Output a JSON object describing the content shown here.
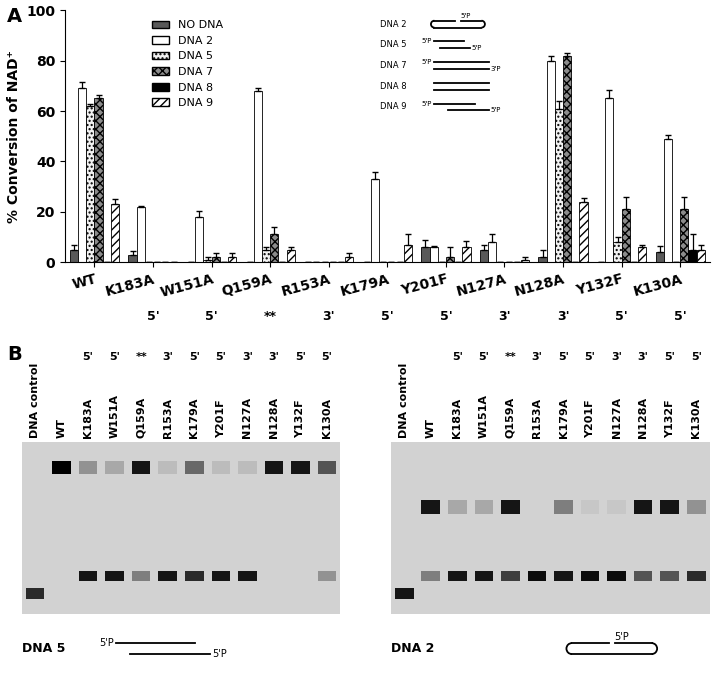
{
  "panel_labels": [
    "A",
    "B"
  ],
  "chart_data": {
    "type": "bar",
    "ylabel": "% Conversion of NAD⁺",
    "categories": [
      "WT",
      "K183A",
      "W151A",
      "Q159A",
      "R153A",
      "K179A",
      "Y201F",
      "N127A",
      "N128A",
      "Y132F",
      "K130A"
    ],
    "category_notes": [
      null,
      "5'",
      "5'",
      "**",
      "3'",
      "5'",
      "5'",
      "3'",
      "3'",
      "5'",
      "5'"
    ],
    "ylim": [
      0,
      100
    ],
    "yticks": [
      0,
      20,
      40,
      60,
      80,
      100
    ],
    "legend": "upper left",
    "series": [
      {
        "name": "NO DNA",
        "color": "#595959",
        "values": [
          5,
          3,
          0,
          0,
          0,
          0,
          6,
          5,
          2,
          0,
          4
        ],
        "errors": [
          2,
          1.5,
          0,
          0,
          0,
          0,
          3,
          2,
          3,
          0,
          2.5
        ]
      },
      {
        "name": "DNA 2",
        "color": "#ffffff",
        "values": [
          69,
          22,
          18,
          68,
          0,
          33,
          6,
          8,
          80,
          65,
          49
        ],
        "errors": [
          2.5,
          0.5,
          2.5,
          1,
          0,
          3,
          0.5,
          3,
          2,
          3.5,
          1.5
        ]
      },
      {
        "name": "DNA 5",
        "color": "#f2f2f2",
        "values": [
          62,
          0,
          1,
          5,
          0,
          0,
          0,
          0,
          61,
          8,
          0
        ],
        "errors": [
          1,
          0,
          1,
          1,
          0,
          0,
          0,
          0,
          3,
          2,
          0
        ]
      },
      {
        "name": "DNA 7",
        "color": "#8c8c8c",
        "values": [
          65,
          0,
          2,
          11,
          0,
          0,
          2,
          0,
          82,
          21,
          21
        ],
        "errors": [
          1.5,
          0,
          1.5,
          3,
          0,
          0,
          4,
          0,
          1,
          5,
          5
        ]
      },
      {
        "name": "DNA 8",
        "color": "#000000",
        "values": [
          0,
          0,
          0,
          0,
          0,
          0,
          0,
          0,
          0,
          0,
          5
        ],
        "errors": [
          0,
          0,
          0,
          0,
          0,
          0,
          0,
          0,
          0,
          0,
          6
        ]
      },
      {
        "name": "DNA 9",
        "color": "#ffffff",
        "values": [
          23,
          0,
          2,
          5,
          2,
          7,
          6,
          1,
          24,
          6,
          5
        ],
        "errors": [
          2,
          0,
          1.5,
          1,
          1.5,
          4,
          2.5,
          1,
          1.5,
          1,
          2
        ]
      }
    ],
    "schematics": [
      {
        "name": "DNA 2",
        "labels": [
          "5'P"
        ]
      },
      {
        "name": "DNA 5",
        "labels": [
          "5'P",
          "5'P"
        ]
      },
      {
        "name": "DNA 7",
        "labels": [
          "5'P",
          "3'P"
        ]
      },
      {
        "name": "DNA 8",
        "labels": []
      },
      {
        "name": "DNA 9",
        "labels": [
          "5'P",
          "5'P"
        ]
      }
    ]
  },
  "gels": [
    {
      "name": "DNA 5",
      "lanes": [
        "DNA control",
        "WT",
        "K183A",
        "W151A",
        "Q159A",
        "R153A",
        "K179A",
        "Y201F",
        "N127A",
        "N128A",
        "Y132F",
        "K130A"
      ],
      "marks": [
        null,
        null,
        "5'",
        "5'",
        "**",
        "3'",
        "5'",
        "5'",
        "3'",
        "3'",
        "5'",
        "5'"
      ],
      "shifted_band": [
        0,
        1,
        0.3,
        0.2,
        0.9,
        0.1,
        0.5,
        0.1,
        0.1,
        0.9,
        0.9,
        0.6
      ],
      "free_band": [
        0.8,
        0,
        0.9,
        0.9,
        0.4,
        0.9,
        0.8,
        0.9,
        0.9,
        0,
        0,
        0.3
      ],
      "labels": [
        "5'P",
        "5'P"
      ]
    },
    {
      "name": "DNA 2",
      "lanes": [
        "DNA control",
        "WT",
        "K183A",
        "W151A",
        "Q159A",
        "R153A",
        "K179A",
        "Y201F",
        "N127A",
        "N128A",
        "Y132F",
        "K130A"
      ],
      "marks": [
        null,
        null,
        "5'",
        "5'",
        "**",
        "3'",
        "5'",
        "5'",
        "3'",
        "3'",
        "5'",
        "5'"
      ],
      "shifted_band": [
        0,
        0.9,
        0.2,
        0.2,
        0.9,
        0,
        0.4,
        0.05,
        0.05,
        0.9,
        0.9,
        0.3
      ],
      "free_band": [
        0.9,
        0.4,
        0.9,
        0.9,
        0.7,
        0.95,
        0.9,
        0.95,
        0.95,
        0.6,
        0.6,
        0.8
      ],
      "labels": [
        "5'P"
      ]
    }
  ]
}
